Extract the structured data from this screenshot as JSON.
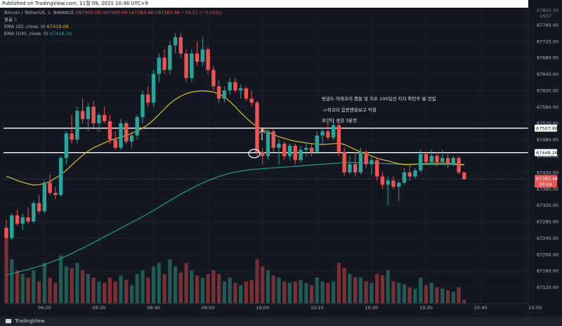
{
  "header": {
    "published_text": "Published on TradingView.com, 11월 09, 2021 10:46 UTC+9"
  },
  "legend": {
    "symbol": "Bitcoin / TetherUS, 1, BINANCE",
    "ohlc": "O67400.00  H67400.06  L67383.48  C67383.48  −16.51 (−0.02%)",
    "volume_label": "볼륨",
    "volume_value": "5",
    "ema20_label": "EMA (20, close, 0)",
    "ema20_value": "67419.08",
    "ema100_label": "EMA (100, close, 0)",
    "ema100_value": "67418.26"
  },
  "annotation": {
    "line1": "방금도 아래꼬리 캔들 및 지수 100일선 지지 확인후 롱 진입",
    "line2": "->위코리 음봉캔들보고 익절",
    "line3": "초단타 성공 3분컷"
  },
  "footer": {
    "brand": "TradingView"
  },
  "colors": {
    "up": "#26a69a",
    "down": "#ef5350",
    "ema20": "#d6c31f",
    "ema100": "#1f9e8c",
    "background": "#131722"
  },
  "chart_data": {
    "type": "candlestick",
    "y_axis": {
      "unit": "USDT",
      "range": [
        67080,
        67800
      ],
      "ticks": [
        67760,
        67720,
        67680,
        67640,
        67600,
        67560,
        67520,
        67480,
        67440,
        67400,
        67360,
        67320,
        67280,
        67240,
        67200,
        67160,
        67120
      ],
      "top_label": "67800.00"
    },
    "x_axis": {
      "ticks": [
        "09:20",
        "09:30",
        "09:40",
        "09:50",
        "10:00",
        "10:10",
        "10:20",
        "10:30",
        "10:40",
        "10:50"
      ]
    },
    "horizontal_levels": [
      {
        "value": 67507.88,
        "label": "67507.88"
      },
      {
        "value": 67448.26,
        "label": "67448.26"
      }
    ],
    "last_price": {
      "value": 67383.48,
      "label": "67383.48",
      "countdown": "00:24"
    },
    "ema20": [
      67390,
      67386,
      67380,
      67376,
      67372,
      67369,
      67370,
      67373,
      67378,
      67386,
      67395,
      67405,
      67418,
      67430,
      67442,
      67452,
      67460,
      67466,
      67472,
      67478,
      67482,
      67486,
      67490,
      67495,
      67501,
      67508,
      67517,
      67528,
      67541,
      67555,
      67568,
      67578,
      67586,
      67592,
      67596,
      67598,
      67599,
      67598,
      67596,
      67591,
      67584,
      67573,
      67560,
      67546,
      67533,
      67521,
      67512,
      67505,
      67498,
      67492,
      67487,
      67483,
      67479,
      67476,
      67474,
      67472,
      67470,
      67469,
      67468,
      67469,
      67470,
      67471,
      67468,
      67462,
      67456,
      67450,
      67445,
      67440,
      67435,
      67431,
      67428,
      67424,
      67421,
      67419,
      67419,
      67420,
      67421,
      67421,
      67422,
      67422,
      67422,
      67422,
      67421,
      67420,
      67419
    ],
    "ema100": [
      67150,
      67153,
      67156,
      67160,
      67163,
      67167,
      67171,
      67175,
      67180,
      67185,
      67190,
      67196,
      67202,
      67209,
      67215,
      67222,
      67229,
      67236,
      67243,
      67250,
      67257,
      67264,
      67271,
      67278,
      67285,
      67292,
      67300,
      67307,
      67315,
      67323,
      67331,
      67339,
      67347,
      67354,
      67361,
      67368,
      67374,
      67380,
      67385,
      67390,
      67394,
      67398,
      67401,
      67403,
      67405,
      67407,
      67408,
      67409,
      67410,
      67411,
      67412,
      67413,
      67414,
      67415,
      67416,
      67417,
      67418,
      67419,
      67420,
      67421,
      67422,
      67423,
      67424,
      67424,
      67424,
      67424,
      67423,
      67423,
      67422,
      67422,
      67421,
      67421,
      67420,
      67420,
      67420,
      67420,
      67420,
      67419,
      67419,
      67419,
      67419,
      67419,
      67419,
      67418,
      67418
    ],
    "candles": [
      {
        "o": 67265,
        "h": 67285,
        "l": 67245,
        "c": 67240,
        "v": 90
      },
      {
        "o": 67240,
        "h": 67300,
        "l": 67235,
        "c": 67295,
        "v": 60
      },
      {
        "o": 67295,
        "h": 67310,
        "l": 67270,
        "c": 67275,
        "v": 45
      },
      {
        "o": 67275,
        "h": 67300,
        "l": 67260,
        "c": 67290,
        "v": 40
      },
      {
        "o": 67290,
        "h": 67315,
        "l": 67275,
        "c": 67280,
        "v": 35
      },
      {
        "o": 67280,
        "h": 67330,
        "l": 67275,
        "c": 67325,
        "v": 45
      },
      {
        "o": 67325,
        "h": 67345,
        "l": 67300,
        "c": 67305,
        "v": 30
      },
      {
        "o": 67305,
        "h": 67380,
        "l": 67300,
        "c": 67375,
        "v": 55
      },
      {
        "o": 67375,
        "h": 67395,
        "l": 67345,
        "c": 67350,
        "v": 35
      },
      {
        "o": 67350,
        "h": 67365,
        "l": 67335,
        "c": 67345,
        "v": 28
      },
      {
        "o": 67345,
        "h": 67440,
        "l": 67340,
        "c": 67435,
        "v": 65
      },
      {
        "o": 67435,
        "h": 67500,
        "l": 67420,
        "c": 67495,
        "v": 50
      },
      {
        "o": 67495,
        "h": 67540,
        "l": 67470,
        "c": 67480,
        "v": 48
      },
      {
        "o": 67480,
        "h": 67560,
        "l": 67470,
        "c": 67550,
        "v": 55
      },
      {
        "o": 67550,
        "h": 67580,
        "l": 67520,
        "c": 67530,
        "v": 45
      },
      {
        "o": 67530,
        "h": 67570,
        "l": 67500,
        "c": 67560,
        "v": 40
      },
      {
        "o": 67560,
        "h": 67575,
        "l": 67510,
        "c": 67520,
        "v": 35
      },
      {
        "o": 67520,
        "h": 67545,
        "l": 67500,
        "c": 67540,
        "v": 30
      },
      {
        "o": 67540,
        "h": 67560,
        "l": 67520,
        "c": 67525,
        "v": 28
      },
      {
        "o": 67525,
        "h": 67540,
        "l": 67470,
        "c": 67480,
        "v": 35
      },
      {
        "o": 67480,
        "h": 67500,
        "l": 67455,
        "c": 67460,
        "v": 30
      },
      {
        "o": 67460,
        "h": 67530,
        "l": 67455,
        "c": 67520,
        "v": 38
      },
      {
        "o": 67520,
        "h": 67525,
        "l": 67470,
        "c": 67475,
        "v": 32
      },
      {
        "o": 67475,
        "h": 67500,
        "l": 67460,
        "c": 67490,
        "v": 25
      },
      {
        "o": 67490,
        "h": 67540,
        "l": 67480,
        "c": 67535,
        "v": 40
      },
      {
        "o": 67535,
        "h": 67600,
        "l": 67520,
        "c": 67590,
        "v": 45
      },
      {
        "o": 67590,
        "h": 67610,
        "l": 67560,
        "c": 67570,
        "v": 35
      },
      {
        "o": 67570,
        "h": 67650,
        "l": 67560,
        "c": 67640,
        "v": 50
      },
      {
        "o": 67640,
        "h": 67690,
        "l": 67620,
        "c": 67680,
        "v": 55
      },
      {
        "o": 67680,
        "h": 67700,
        "l": 67640,
        "c": 67650,
        "v": 40
      },
      {
        "o": 67650,
        "h": 67720,
        "l": 67640,
        "c": 67710,
        "v": 60
      },
      {
        "o": 67710,
        "h": 67740,
        "l": 67690,
        "c": 67730,
        "v": 50
      },
      {
        "o": 67730,
        "h": 67740,
        "l": 67680,
        "c": 67690,
        "v": 42
      },
      {
        "o": 67690,
        "h": 67700,
        "l": 67620,
        "c": 67630,
        "v": 55
      },
      {
        "o": 67630,
        "h": 67700,
        "l": 67620,
        "c": 67690,
        "v": 45
      },
      {
        "o": 67690,
        "h": 67720,
        "l": 67660,
        "c": 67670,
        "v": 38
      },
      {
        "o": 67670,
        "h": 67730,
        "l": 67660,
        "c": 67700,
        "v": 35
      },
      {
        "o": 67700,
        "h": 67705,
        "l": 67640,
        "c": 67650,
        "v": 40
      },
      {
        "o": 67650,
        "h": 67660,
        "l": 67600,
        "c": 67610,
        "v": 45
      },
      {
        "o": 67610,
        "h": 67625,
        "l": 67570,
        "c": 67580,
        "v": 40
      },
      {
        "o": 67580,
        "h": 67610,
        "l": 67570,
        "c": 67600,
        "v": 30
      },
      {
        "o": 67600,
        "h": 67630,
        "l": 67590,
        "c": 67620,
        "v": 35
      },
      {
        "o": 67620,
        "h": 67630,
        "l": 67595,
        "c": 67600,
        "v": 28
      },
      {
        "o": 67600,
        "h": 67615,
        "l": 67580,
        "c": 67605,
        "v": 25
      },
      {
        "o": 67605,
        "h": 67610,
        "l": 67575,
        "c": 67580,
        "v": 30
      },
      {
        "o": 67580,
        "h": 67600,
        "l": 67560,
        "c": 67570,
        "v": 32
      },
      {
        "o": 67570,
        "h": 67575,
        "l": 67440,
        "c": 67450,
        "v": 60
      },
      {
        "o": 67450,
        "h": 67460,
        "l": 67420,
        "c": 67440,
        "v": 50
      },
      {
        "o": 67440,
        "h": 67510,
        "l": 67430,
        "c": 67500,
        "v": 45
      },
      {
        "o": 67500,
        "h": 67505,
        "l": 67450,
        "c": 67460,
        "v": 38
      },
      {
        "o": 67460,
        "h": 67480,
        "l": 67420,
        "c": 67470,
        "v": 35
      },
      {
        "o": 67470,
        "h": 67475,
        "l": 67430,
        "c": 67440,
        "v": 30
      },
      {
        "o": 67440,
        "h": 67470,
        "l": 67430,
        "c": 67465,
        "v": 28
      },
      {
        "o": 67465,
        "h": 67470,
        "l": 67420,
        "c": 67430,
        "v": 30
      },
      {
        "o": 67430,
        "h": 67465,
        "l": 67425,
        "c": 67455,
        "v": 32
      },
      {
        "o": 67455,
        "h": 67475,
        "l": 67440,
        "c": 67460,
        "v": 28
      },
      {
        "o": 67460,
        "h": 67470,
        "l": 67440,
        "c": 67450,
        "v": 25
      },
      {
        "o": 67450,
        "h": 67500,
        "l": 67445,
        "c": 67490,
        "v": 35
      },
      {
        "o": 67490,
        "h": 67510,
        "l": 67470,
        "c": 67500,
        "v": 30
      },
      {
        "o": 67500,
        "h": 67520,
        "l": 67480,
        "c": 67485,
        "v": 28
      },
      {
        "o": 67485,
        "h": 67525,
        "l": 67480,
        "c": 67515,
        "v": 30
      },
      {
        "o": 67515,
        "h": 67530,
        "l": 67440,
        "c": 67450,
        "v": 55
      },
      {
        "o": 67450,
        "h": 67460,
        "l": 67390,
        "c": 67400,
        "v": 48
      },
      {
        "o": 67400,
        "h": 67440,
        "l": 67395,
        "c": 67420,
        "v": 40
      },
      {
        "o": 67420,
        "h": 67450,
        "l": 67390,
        "c": 67400,
        "v": 36
      },
      {
        "o": 67400,
        "h": 67460,
        "l": 67395,
        "c": 67450,
        "v": 35
      },
      {
        "o": 67450,
        "h": 67455,
        "l": 67410,
        "c": 67420,
        "v": 30
      },
      {
        "o": 67420,
        "h": 67440,
        "l": 67395,
        "c": 67430,
        "v": 28
      },
      {
        "o": 67430,
        "h": 67435,
        "l": 67380,
        "c": 67390,
        "v": 40
      },
      {
        "o": 67390,
        "h": 67400,
        "l": 67360,
        "c": 67370,
        "v": 38
      },
      {
        "o": 67370,
        "h": 67390,
        "l": 67320,
        "c": 67380,
        "v": 45
      },
      {
        "o": 67380,
        "h": 67390,
        "l": 67360,
        "c": 67365,
        "v": 30
      },
      {
        "o": 67365,
        "h": 67380,
        "l": 67330,
        "c": 67375,
        "v": 28
      },
      {
        "o": 67375,
        "h": 67410,
        "l": 67370,
        "c": 67400,
        "v": 26
      },
      {
        "o": 67400,
        "h": 67420,
        "l": 67380,
        "c": 67390,
        "v": 22
      },
      {
        "o": 67390,
        "h": 67410,
        "l": 67385,
        "c": 67405,
        "v": 20
      },
      {
        "o": 67405,
        "h": 67455,
        "l": 67400,
        "c": 67445,
        "v": 35
      },
      {
        "o": 67445,
        "h": 67450,
        "l": 67420,
        "c": 67425,
        "v": 25
      },
      {
        "o": 67425,
        "h": 67455,
        "l": 67420,
        "c": 67440,
        "v": 28
      },
      {
        "o": 67440,
        "h": 67450,
        "l": 67415,
        "c": 67425,
        "v": 22
      },
      {
        "o": 67425,
        "h": 67455,
        "l": 67420,
        "c": 67435,
        "v": 20
      },
      {
        "o": 67435,
        "h": 67445,
        "l": 67410,
        "c": 67420,
        "v": 18
      },
      {
        "o": 67420,
        "h": 67440,
        "l": 67415,
        "c": 67435,
        "v": 16
      },
      {
        "o": 67435,
        "h": 67440,
        "l": 67395,
        "c": 67400,
        "v": 22
      },
      {
        "o": 67400,
        "h": 67400,
        "l": 67383,
        "c": 67383,
        "v": 5
      }
    ]
  }
}
